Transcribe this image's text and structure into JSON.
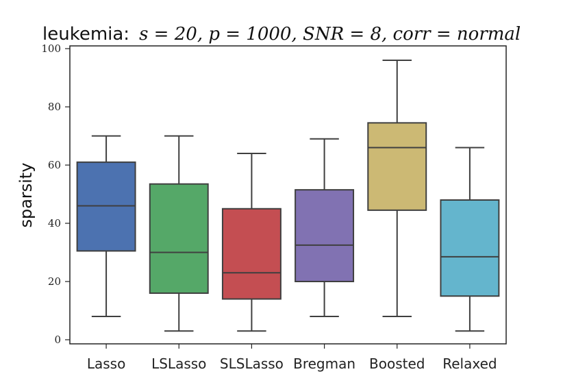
{
  "chart_data": {
    "type": "box",
    "title_prefix": "leukemia:",
    "title_math": "s = 20, p = 1000, SNR = 8, corr = normal",
    "xlabel": "",
    "ylabel": "sparsity",
    "ylim": [
      0,
      100
    ],
    "yticks": [
      0,
      20,
      40,
      60,
      80,
      100
    ],
    "categories": [
      "Lasso",
      "LSLasso",
      "SLSLasso",
      "Bregman",
      "Boosted",
      "Relaxed"
    ],
    "boxes": [
      {
        "name": "Lasso",
        "min": 8,
        "q1": 30.5,
        "median": 46,
        "q3": 61,
        "max": 70,
        "color": "#4c72b0"
      },
      {
        "name": "LSLasso",
        "min": 3,
        "q1": 16,
        "median": 30,
        "q3": 53.5,
        "max": 70,
        "color": "#55a868"
      },
      {
        "name": "SLSLasso",
        "min": 3,
        "q1": 14,
        "median": 23,
        "q3": 45,
        "max": 64,
        "color": "#c44e52"
      },
      {
        "name": "Bregman",
        "min": 8,
        "q1": 20,
        "median": 32.5,
        "q3": 51.5,
        "max": 69,
        "color": "#8172b2"
      },
      {
        "name": "Boosted",
        "min": 8,
        "q1": 44.5,
        "median": 66,
        "q3": 74.5,
        "max": 96,
        "color": "#ccb974"
      },
      {
        "name": "Relaxed",
        "min": 3,
        "q1": 15,
        "median": 28.5,
        "q3": 48,
        "max": 66,
        "color": "#64b5cd"
      }
    ]
  }
}
